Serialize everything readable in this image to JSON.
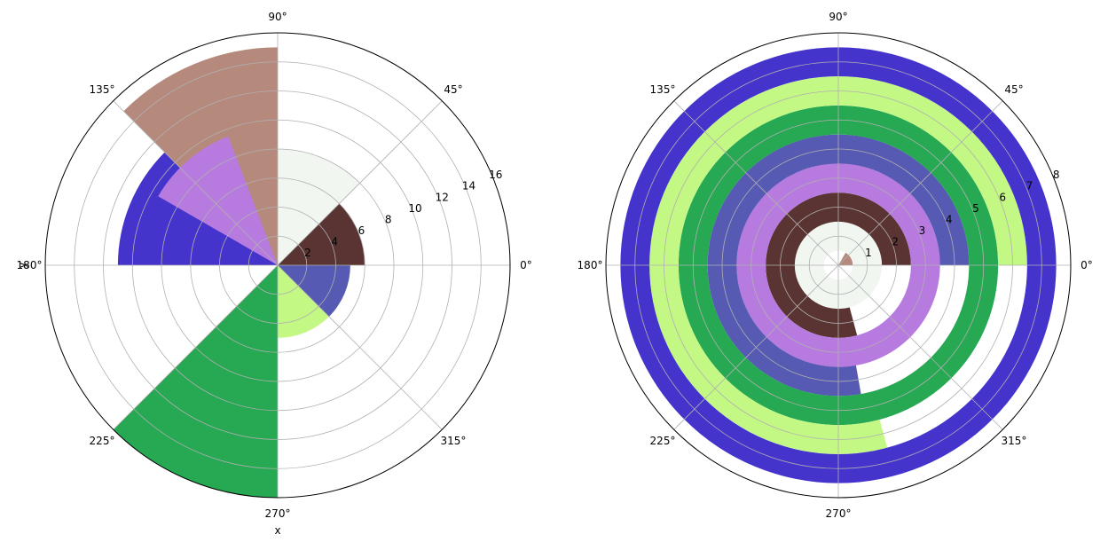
{
  "chart_data": [
    {
      "type": "polar-bar",
      "theta_unit": "degrees",
      "rlim": [
        0,
        16
      ],
      "r_ticks": [
        "2",
        "4",
        "6",
        "8",
        "10",
        "12",
        "14",
        "16"
      ],
      "theta_ticks": [
        "0°",
        "45°",
        "90°",
        "135°",
        "180°",
        "225°",
        "270°",
        "315°"
      ],
      "xlabel": "x",
      "ylabel": "y",
      "grid": true,
      "bars": [
        {
          "theta_start": 0,
          "theta_end": 45,
          "value": 6.0,
          "color": "#5a3432"
        },
        {
          "theta_start": 45,
          "theta_end": 90,
          "value": 8.0,
          "color": "#f1f6f1"
        },
        {
          "theta_start": 90,
          "theta_end": 135,
          "value": 15.0,
          "color": "#b58a7d"
        },
        {
          "theta_start": 135,
          "theta_end": 180,
          "value": 11.0,
          "color": "#4434cc"
        },
        {
          "theta_start": 180,
          "theta_end": 225,
          "value": 0.0,
          "color": "#ffffff"
        },
        {
          "theta_start": 225,
          "theta_end": 270,
          "value": 16.0,
          "color": "#27a853"
        },
        {
          "theta_start": 270,
          "theta_end": 315,
          "value": 5.0,
          "color": "#c3f885"
        },
        {
          "theta_start": 315,
          "theta_end": 360,
          "value": 5.0,
          "color": "#565ab2"
        }
      ],
      "extra_bars": [
        {
          "theta_start": 111,
          "theta_end": 150,
          "value": 9.5,
          "color": "#b77be0"
        }
      ]
    },
    {
      "type": "polar-ring",
      "theta_unit": "degrees",
      "rlim": [
        0,
        8
      ],
      "r_ticks": [
        "1",
        "2",
        "3",
        "4",
        "5",
        "6",
        "7",
        "8"
      ],
      "theta_ticks": [
        "0°",
        "45°",
        "90°",
        "135°",
        "180°",
        "225°",
        "270°",
        "315°"
      ],
      "grid": true,
      "rings": [
        {
          "r_inner": 0,
          "r_outer": 0.5,
          "theta_start": 0,
          "theta_end": 60,
          "color": "#b58a7d"
        },
        {
          "r_inner": 0.5,
          "r_outer": 1.5,
          "theta_start": 0,
          "theta_end": 360,
          "color": "#f1f6f1"
        },
        {
          "r_inner": 1.5,
          "r_outer": 2.5,
          "theta_start": 0,
          "theta_end": 285,
          "color": "#5a3432"
        },
        {
          "r_inner": 2.5,
          "r_outer": 3.5,
          "theta_start": 0,
          "theta_end": 360,
          "color": "#b77be0"
        },
        {
          "r_inner": 3.5,
          "r_outer": 4.5,
          "theta_start": 0,
          "theta_end": 280,
          "color": "#565ab2"
        },
        {
          "r_inner": 4.5,
          "r_outer": 5.5,
          "theta_start": 0,
          "theta_end": 360,
          "color": "#27a853"
        },
        {
          "r_inner": 5.5,
          "r_outer": 6.5,
          "theta_start": 0,
          "theta_end": 285,
          "color": "#c3f885"
        },
        {
          "r_inner": 6.5,
          "r_outer": 7.5,
          "theta_start": 0,
          "theta_end": 360,
          "color": "#4434cc"
        }
      ]
    }
  ]
}
